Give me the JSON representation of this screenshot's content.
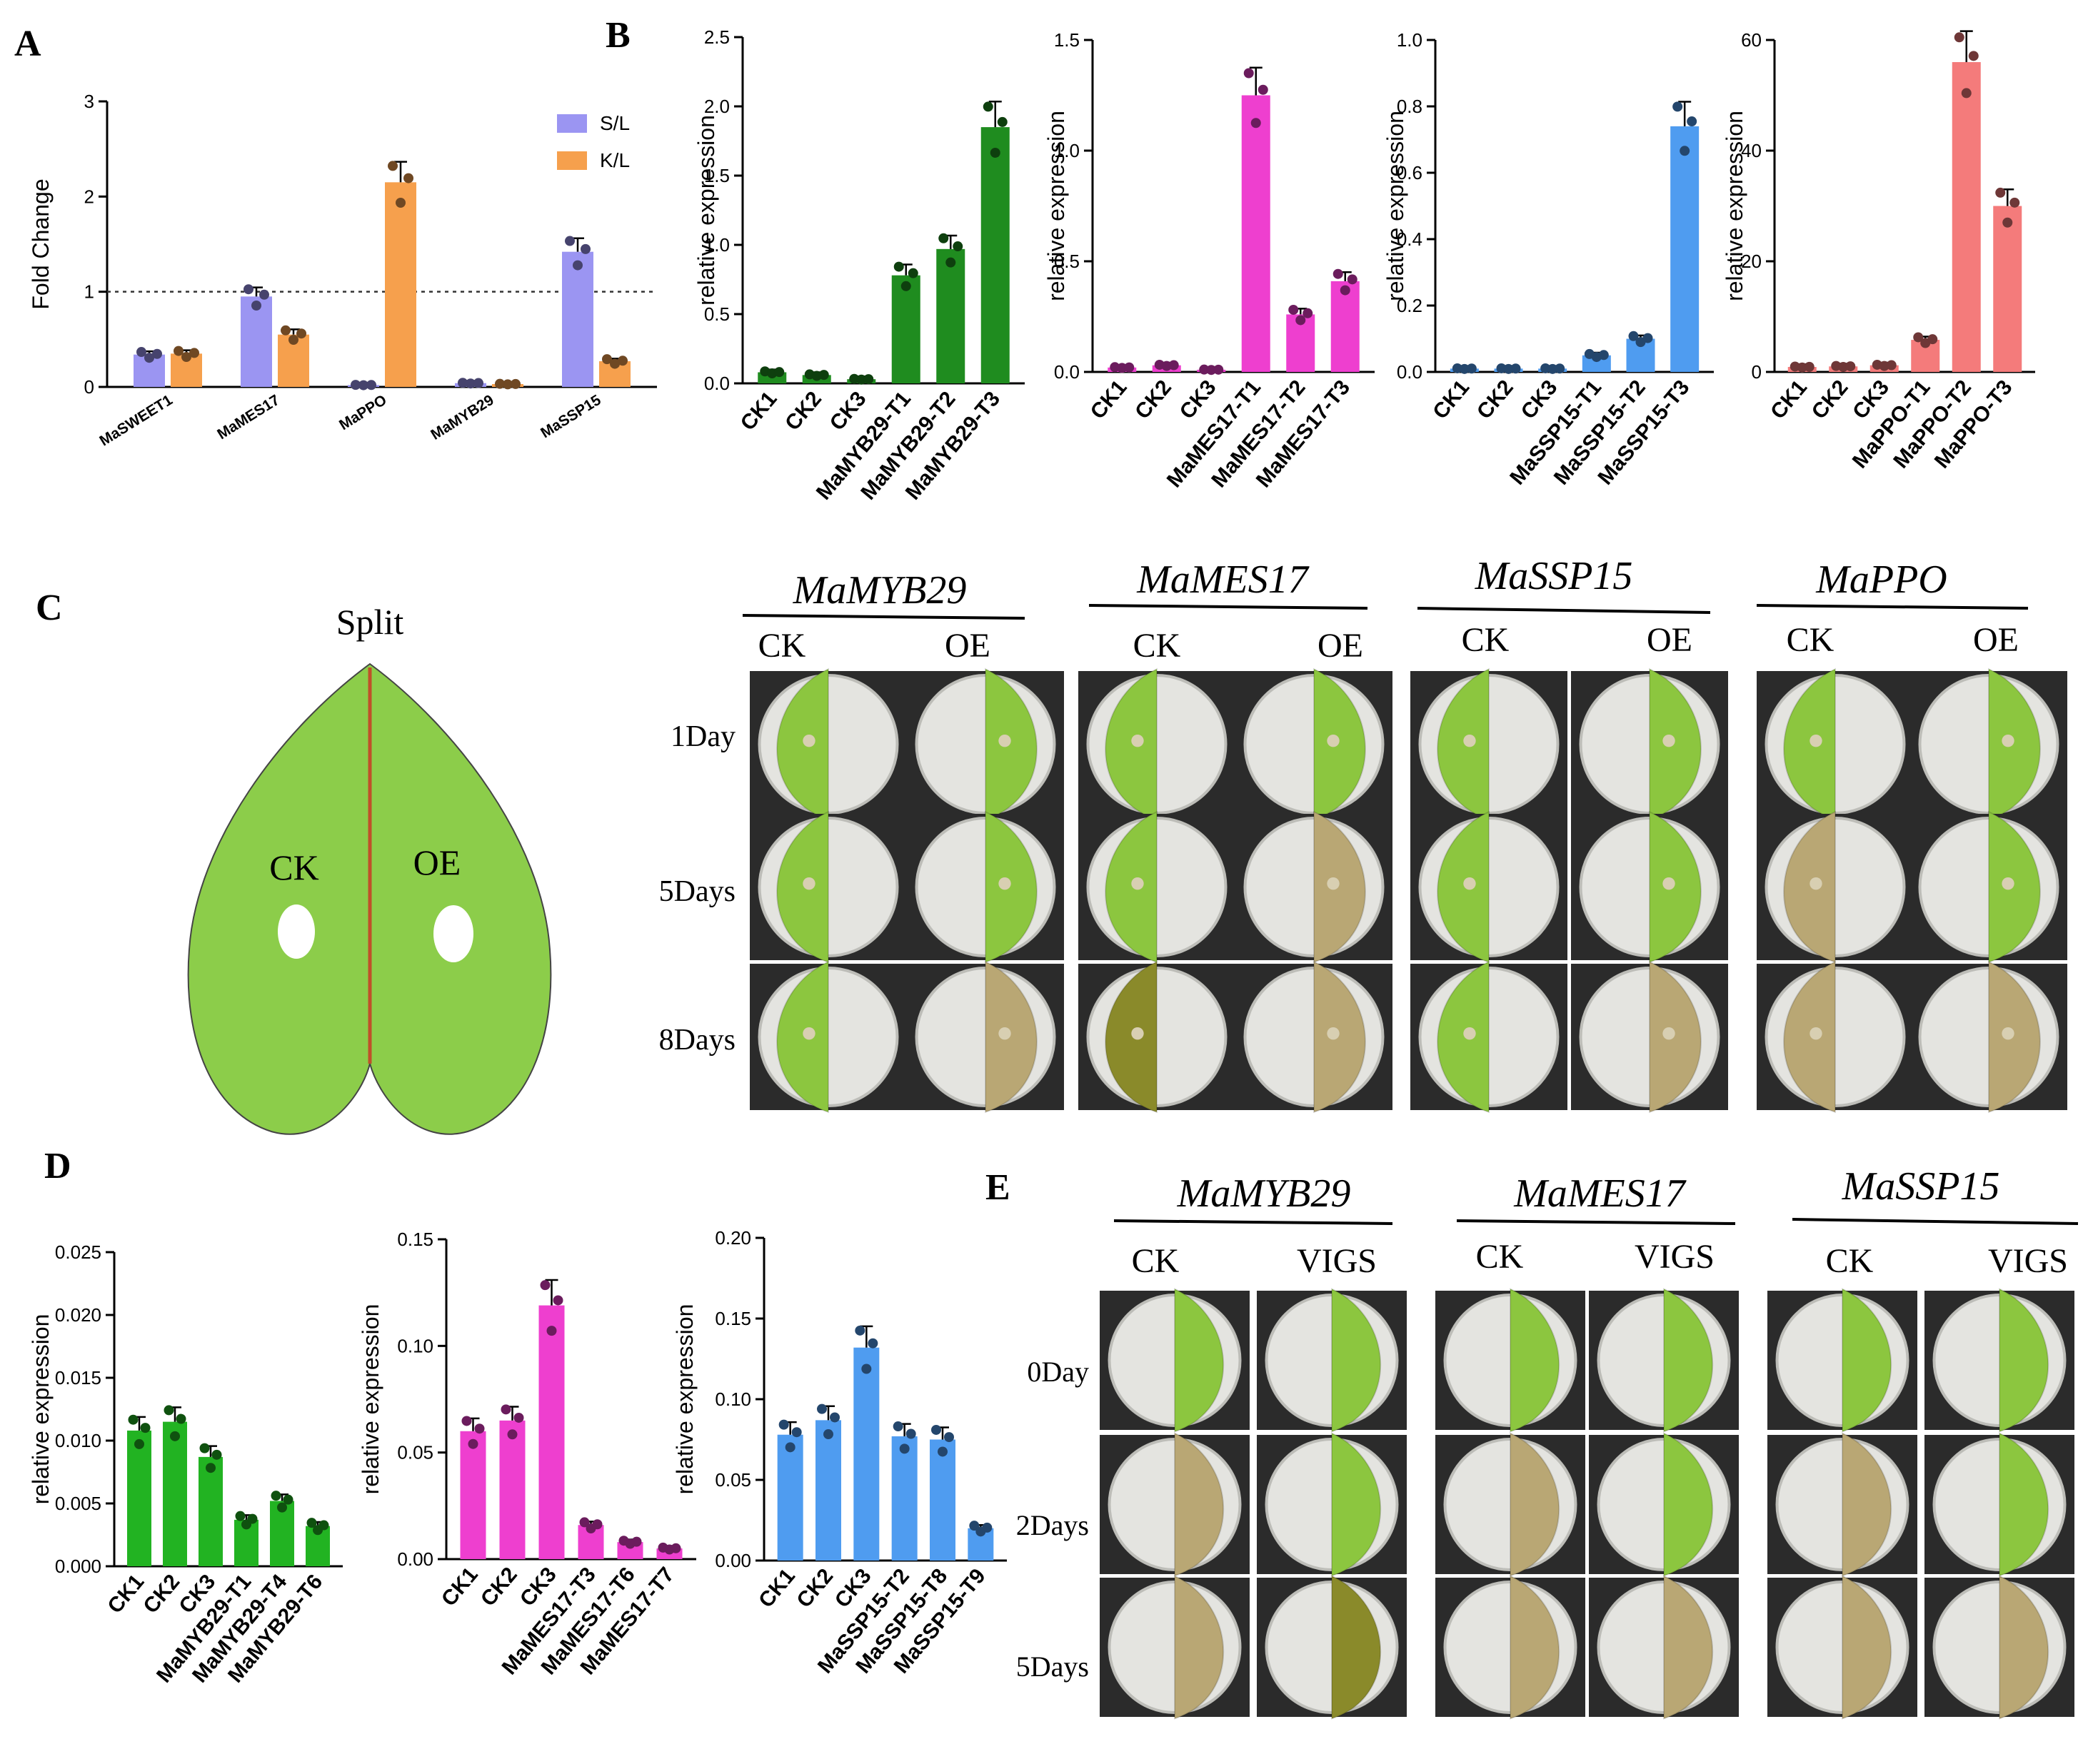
{
  "panel_labels": {
    "A": "A",
    "B": "B",
    "C": "C",
    "D": "D",
    "E": "E"
  },
  "chart_data": [
    {
      "id": "A",
      "type": "bar",
      "title": "",
      "xlabel": "",
      "ylabel": "Fold Change",
      "ylim": [
        0,
        3
      ],
      "yticks": [
        "0",
        "1",
        "2",
        "3"
      ],
      "reference_line": 1,
      "categories": [
        "MaSWEET1",
        "MaMES17",
        "MaPPO",
        "MaMYB29",
        "MaSSP15"
      ],
      "legend": [
        "S/L",
        "K/L"
      ],
      "legend_position": "top-right",
      "series": [
        {
          "name": "S/L",
          "color": "#9b95f2",
          "values": [
            0.34,
            0.95,
            0.02,
            0.04,
            1.42
          ]
        },
        {
          "name": "K/L",
          "color": "#f6a04d",
          "values": [
            0.35,
            0.55,
            2.15,
            0.03,
            0.27
          ]
        }
      ]
    },
    {
      "id": "B1",
      "type": "bar",
      "ylabel": "relative expression",
      "ylim": [
        0,
        2.5
      ],
      "yticks": [
        "0.0",
        "0.5",
        "1.0",
        "1.5",
        "2.0",
        "2.5"
      ],
      "categories": [
        "CK1",
        "CK2",
        "CK3",
        "MaMYB29-T1",
        "MaMYB29-T2",
        "MaMYB29-T3"
      ],
      "color": "#1f8c1f",
      "values": [
        0.08,
        0.06,
        0.03,
        0.78,
        0.97,
        1.85
      ]
    },
    {
      "id": "B2",
      "type": "bar",
      "ylabel": "relative expression",
      "ylim": [
        0,
        1.5
      ],
      "yticks": [
        "0.0",
        "0.5",
        "1.0",
        "1.5"
      ],
      "categories": [
        "CK1",
        "CK2",
        "CK3",
        "MaMES17-T1",
        "MaMES17-T2",
        "MaMES17-T3"
      ],
      "color": "#ee3fcf",
      "values": [
        0.02,
        0.03,
        0.01,
        1.25,
        0.26,
        0.41
      ]
    },
    {
      "id": "B3",
      "type": "bar",
      "ylabel": "relative expression",
      "ylim": [
        0,
        1.0
      ],
      "yticks": [
        "0.0",
        "0.2",
        "0.4",
        "0.6",
        "0.8",
        "1.0"
      ],
      "categories": [
        "CK1",
        "CK2",
        "CK3",
        "MaSSP15-T1",
        "MaSSP15-T2",
        "MaSSP15-T3"
      ],
      "color": "#4f9cf0",
      "values": [
        0.01,
        0.01,
        0.01,
        0.05,
        0.1,
        0.74
      ]
    },
    {
      "id": "B4",
      "type": "bar",
      "ylabel": "relative expression",
      "ylim": [
        0,
        60
      ],
      "yticks": [
        "0",
        "20",
        "40",
        "60"
      ],
      "categories": [
        "CK1",
        "CK2",
        "CK3",
        "MaPPO-T1",
        "MaPPO-T2",
        "MaPPO-T3"
      ],
      "color": "#f47b7b",
      "values": [
        0.9,
        1.0,
        1.2,
        5.8,
        56.0,
        30.0
      ]
    },
    {
      "id": "D1",
      "type": "bar",
      "ylabel": "relative expression",
      "ylim": [
        0,
        0.025
      ],
      "yticks": [
        "0.000",
        "0.005",
        "0.010",
        "0.015",
        "0.020",
        "0.025"
      ],
      "categories": [
        "CK1",
        "CK2",
        "CK3",
        "MaMYB29-T1",
        "MaMYB29-T4",
        "MaMYB29-T6"
      ],
      "color": "#22b322",
      "values": [
        0.0108,
        0.0115,
        0.0087,
        0.0037,
        0.0052,
        0.0032
      ]
    },
    {
      "id": "D2",
      "type": "bar",
      "ylabel": "relative expression",
      "ylim": [
        0,
        0.15
      ],
      "yticks": [
        "0.00",
        "0.05",
        "0.10",
        "0.15"
      ],
      "categories": [
        "CK1",
        "CK2",
        "CK3",
        "MaMES17-T3",
        "MaMES17-T6",
        "MaMES17-T7"
      ],
      "color": "#ee3fcf",
      "values": [
        0.06,
        0.065,
        0.119,
        0.016,
        0.008,
        0.005
      ]
    },
    {
      "id": "D3",
      "type": "bar",
      "ylabel": "relative expression",
      "ylim": [
        0,
        0.2
      ],
      "yticks": [
        "0.00",
        "0.05",
        "0.10",
        "0.15",
        "0.20"
      ],
      "categories": [
        "CK1",
        "CK2",
        "CK3",
        "MaSSP15-T2",
        "MaSSP15-T8",
        "MaSSP15-T9"
      ],
      "color": "#4f9cf0",
      "values": [
        0.078,
        0.087,
        0.132,
        0.077,
        0.075,
        0.02
      ]
    }
  ],
  "panelC": {
    "split_label": "Split",
    "ck_label": "CK",
    "oe_label": "OE",
    "groups": [
      {
        "gene": "MaMYB29",
        "left": "CK",
        "right": "OE"
      },
      {
        "gene": "MaMES17",
        "left": "CK",
        "right": "OE"
      },
      {
        "gene": "MaSSP15",
        "left": "CK",
        "right": "OE"
      },
      {
        "gene": "MaPPO",
        "left": "CK",
        "right": "OE"
      }
    ],
    "rows": [
      "1Day",
      "5Days",
      "8Days"
    ]
  },
  "panelE": {
    "groups": [
      {
        "gene": "MaMYB29",
        "left": "CK",
        "right": "VIGS"
      },
      {
        "gene": "MaMES17",
        "left": "CK",
        "right": "VIGS"
      },
      {
        "gene": "MaSSP15",
        "left": "CK",
        "right": "VIGS"
      }
    ],
    "rows": [
      "0Day",
      "2Days",
      "5Days"
    ]
  },
  "colors": {
    "leaf_green": "#8ccd4a",
    "split_line": "#c0502a",
    "photo_bg": "#2b2b2b",
    "dish": "#e4e4e0",
    "fresh_leaf": "#8cc63f",
    "brown_leaf": "#b9a774",
    "olive_leaf": "#8a8a2a"
  }
}
